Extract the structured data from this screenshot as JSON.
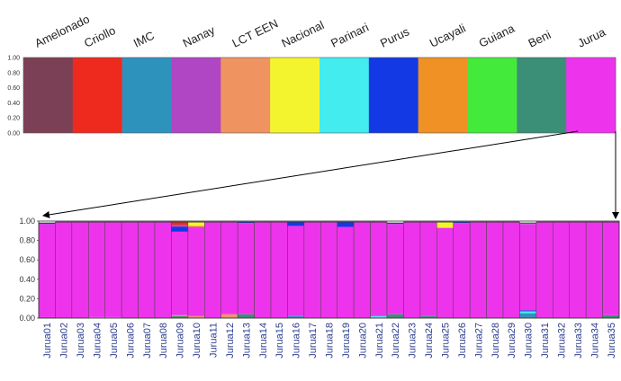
{
  "chart_data": [
    {
      "type": "bar",
      "stacked": true,
      "title": "",
      "xlabel": "",
      "ylabel": "",
      "ylim": [
        0,
        1
      ],
      "yticks": [
        "0.00",
        "0.20",
        "0.40",
        "0.60",
        "0.80",
        "1.00"
      ],
      "categories": [
        "Amelonado",
        "Criollo",
        "IMC",
        "Nanay",
        "LCT EEN",
        "Nacional",
        "Parinari",
        "Purus",
        "Ucayali",
        "Guiana",
        "Beni",
        "Jurua"
      ],
      "colors": [
        "#7b3f56",
        "#ee2a1f",
        "#2e93bc",
        "#b046c3",
        "#ef9461",
        "#f4f42e",
        "#43ecef",
        "#1239e3",
        "#ef9125",
        "#44ea3b",
        "#3a8f76",
        "#ee33ec"
      ],
      "values": [
        1,
        1,
        1,
        1,
        1,
        1,
        1,
        1,
        1,
        1,
        1,
        1
      ]
    },
    {
      "type": "bar",
      "stacked": true,
      "title": "",
      "xlabel": "",
      "ylabel": "",
      "ylim": [
        0,
        1
      ],
      "yticks": [
        "0.00",
        "0.20",
        "0.40",
        "0.60",
        "0.80",
        "1.00"
      ],
      "categories": [
        "Jurua01",
        "Jurua02",
        "Jurua03",
        "Jurua04",
        "Jurua05",
        "Jurua06",
        "Jurua07",
        "Jurua08",
        "Jurua09",
        "Jurua10",
        "Jurua11",
        "Jurua12",
        "Jurua13",
        "Jurua14",
        "Jurua15",
        "Jurua16",
        "Jurua17",
        "Jurua18",
        "Jurua19",
        "Jurua20",
        "Jurua21",
        "Jurua22",
        "Jurua23",
        "Jurua24",
        "Jurua25",
        "Jurua26",
        "Jurua27",
        "Jurua28",
        "Jurua29",
        "Jurua30",
        "Jurua31",
        "Jurua32",
        "Jurua33",
        "Jurua34",
        "Jurua35"
      ],
      "main_color": "#ee33ec",
      "stacks": [
        [
          {
            "c": "#3a8f76",
            "v": 0.01
          },
          {
            "c": "#ee33ec",
            "v": 0.96
          },
          {
            "c": "#1239e3",
            "v": 0.01
          }
        ],
        [
          {
            "c": "#ee33ec",
            "v": 0.99
          }
        ],
        [
          {
            "c": "#ee33ec",
            "v": 0.99
          }
        ],
        [
          {
            "c": "#ef9461",
            "v": 0.01
          },
          {
            "c": "#ee33ec",
            "v": 0.98
          }
        ],
        [
          {
            "c": "#ef9461",
            "v": 0.01
          },
          {
            "c": "#ee33ec",
            "v": 0.98
          }
        ],
        [
          {
            "c": "#ee33ec",
            "v": 0.99
          }
        ],
        [
          {
            "c": "#ee33ec",
            "v": 0.99
          }
        ],
        [
          {
            "c": "#ee33ec",
            "v": 0.99
          }
        ],
        [
          {
            "c": "#3a8f76",
            "v": 0.02
          },
          {
            "c": "#ef9125",
            "v": 0.01
          },
          {
            "c": "#ee33ec",
            "v": 0.86
          },
          {
            "c": "#1239e3",
            "v": 0.05
          },
          {
            "c": "#b046c3",
            "v": 0.02
          },
          {
            "c": "#ee2a1f",
            "v": 0.03
          }
        ],
        [
          {
            "c": "#ef9461",
            "v": 0.02
          },
          {
            "c": "#ee33ec",
            "v": 0.92
          },
          {
            "c": "#ef9125",
            "v": 0.01
          },
          {
            "c": "#f4f42e",
            "v": 0.04
          }
        ],
        [
          {
            "c": "#ee33ec",
            "v": 0.99
          }
        ],
        [
          {
            "c": "#ef9461",
            "v": 0.04
          },
          {
            "c": "#ee33ec",
            "v": 0.95
          }
        ],
        [
          {
            "c": "#3a8f76",
            "v": 0.04
          },
          {
            "c": "#ee33ec",
            "v": 0.94
          },
          {
            "c": "#1239e3",
            "v": 0.01
          }
        ],
        [
          {
            "c": "#ee33ec",
            "v": 0.99
          }
        ],
        [
          {
            "c": "#ee33ec",
            "v": 0.99
          }
        ],
        [
          {
            "c": "#2e93bc",
            "v": 0.02
          },
          {
            "c": "#ee33ec",
            "v": 0.93
          },
          {
            "c": "#1239e3",
            "v": 0.04
          }
        ],
        [
          {
            "c": "#ee33ec",
            "v": 0.99
          }
        ],
        [
          {
            "c": "#ee33ec",
            "v": 0.99
          }
        ],
        [
          {
            "c": "#ee33ec",
            "v": 0.94
          },
          {
            "c": "#1239e3",
            "v": 0.05
          }
        ],
        [
          {
            "c": "#ee33ec",
            "v": 0.99
          }
        ],
        [
          {
            "c": "#43ecef",
            "v": 0.02
          },
          {
            "c": "#ee33ec",
            "v": 0.97
          }
        ],
        [
          {
            "c": "#3a8f76",
            "v": 0.04
          },
          {
            "c": "#ee33ec",
            "v": 0.93
          },
          {
            "c": "#1239e3",
            "v": 0.01
          }
        ],
        [
          {
            "c": "#ee33ec",
            "v": 0.99
          }
        ],
        [
          {
            "c": "#3a8f76",
            "v": 0.02
          },
          {
            "c": "#ee33ec",
            "v": 0.97
          }
        ],
        [
          {
            "c": "#ee33ec",
            "v": 0.93
          },
          {
            "c": "#f4f42e",
            "v": 0.06
          }
        ],
        [
          {
            "c": "#ee33ec",
            "v": 0.98
          },
          {
            "c": "#1239e3",
            "v": 0.01
          }
        ],
        [
          {
            "c": "#ee33ec",
            "v": 0.99
          }
        ],
        [
          {
            "c": "#ee33ec",
            "v": 0.99
          }
        ],
        [
          {
            "c": "#ee33ec",
            "v": 0.99
          }
        ],
        [
          {
            "c": "#2e93bc",
            "v": 0.05
          },
          {
            "c": "#43ecef",
            "v": 0.02
          },
          {
            "c": "#1239e3",
            "v": 0.01
          },
          {
            "c": "#ee33ec",
            "v": 0.89
          },
          {
            "c": "#3a8f76",
            "v": 0.01
          }
        ],
        [
          {
            "c": "#ee33ec",
            "v": 0.99
          }
        ],
        [
          {
            "c": "#ee33ec",
            "v": 0.99
          }
        ],
        [
          {
            "c": "#ee33ec",
            "v": 0.99
          }
        ],
        [
          {
            "c": "#ee33ec",
            "v": 0.99
          }
        ],
        [
          {
            "c": "#3a8f76",
            "v": 0.03
          },
          {
            "c": "#ee33ec",
            "v": 0.96
          }
        ]
      ]
    }
  ]
}
